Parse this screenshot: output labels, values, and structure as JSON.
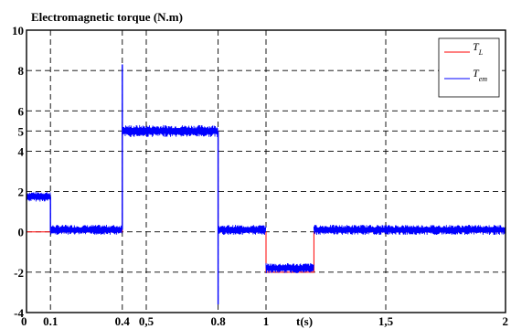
{
  "chart_data": {
    "type": "line",
    "title": "Electromagnetic torque (N.m)",
    "xlabel": "t(s)",
    "ylabel": "",
    "xlim": [
      0,
      2
    ],
    "ylim": [
      -4,
      10
    ],
    "grid": true,
    "legend_position": "top-right",
    "x_ticks": [
      {
        "value": 0,
        "label": "0"
      },
      {
        "value": 0.1,
        "label": "0.1"
      },
      {
        "value": 0.4,
        "label": "0.4"
      },
      {
        "value": 0.5,
        "label": "0,5"
      },
      {
        "value": 0.8,
        "label": "0.8"
      },
      {
        "value": 1.0,
        "label": "1"
      },
      {
        "value": 1.5,
        "label": "1,5"
      },
      {
        "value": 2.0,
        "label": "2"
      }
    ],
    "y_ticks": [
      {
        "value": 10,
        "label": "10"
      },
      {
        "value": 8,
        "label": "8"
      },
      {
        "value": 6,
        "label": "6"
      },
      {
        "value": 5,
        "label": "5"
      },
      {
        "value": 4,
        "label": "4"
      },
      {
        "value": 2,
        "label": "2"
      },
      {
        "value": 0,
        "label": "0"
      },
      {
        "value": -2,
        "label": "-2"
      },
      {
        "value": -4,
        "label": "-4"
      }
    ],
    "series": [
      {
        "name_main": "T",
        "name_sub": "L",
        "color": "#ff0000",
        "segments": [
          {
            "x0": 0.0,
            "x1": 0.4,
            "y": 0
          },
          {
            "x0": 0.4,
            "x1": 0.8,
            "y": 5
          },
          {
            "x0": 0.8,
            "x1": 1.0,
            "y": 0
          },
          {
            "x0": 1.0,
            "x1": 1.2,
            "y": -2
          },
          {
            "x0": 1.2,
            "x1": 2.0,
            "y": 0
          }
        ]
      },
      {
        "name_main": "T",
        "name_sub": "em",
        "color": "#0000ff",
        "segments": [
          {
            "x0": 0.0,
            "x1": 0.1,
            "mean": 1.75,
            "ripple": 0.25
          },
          {
            "x0": 0.1,
            "x1": 0.4,
            "mean": 0.1,
            "ripple": 0.25
          },
          {
            "x0": 0.4,
            "x1": 0.8,
            "mean": 5.0,
            "ripple": 0.3
          },
          {
            "x0": 0.8,
            "x1": 1.0,
            "mean": 0.1,
            "ripple": 0.25
          },
          {
            "x0": 1.0,
            "x1": 1.2,
            "mean": -1.8,
            "ripple": 0.25
          },
          {
            "x0": 1.2,
            "x1": 2.0,
            "mean": 0.1,
            "ripple": 0.25
          }
        ],
        "spikes": [
          {
            "x": 0.4,
            "from": 0.1,
            "to": 8.3
          },
          {
            "x": 0.8,
            "from": 5.0,
            "to": -3.6
          },
          {
            "x": 0.1,
            "from": 1.75,
            "to": 0.0
          }
        ]
      }
    ]
  }
}
